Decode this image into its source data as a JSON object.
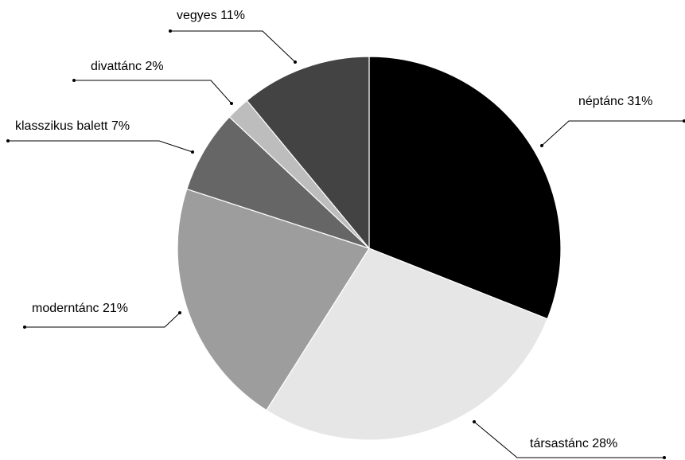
{
  "chart_data": {
    "type": "pie",
    "title": "",
    "slices": [
      {
        "label": "néptánc",
        "value": 31,
        "display": "néptánc 31%",
        "color": "#000000"
      },
      {
        "label": "társastánc",
        "value": 28,
        "display": "társastánc 28%",
        "color": "#e6e6e6"
      },
      {
        "label": "moderntánc",
        "value": 21,
        "display": "moderntánc 21%",
        "color": "#9d9d9d"
      },
      {
        "label": "klasszikus balett",
        "value": 7,
        "display": "klasszikus balett 7%",
        "color": "#666666"
      },
      {
        "label": "divattánc",
        "value": 2,
        "display": "divattánc 2%",
        "color": "#bdbdbd"
      },
      {
        "label": "vegyes",
        "value": 11,
        "display": "vegyes 11%",
        "color": "#434343"
      }
    ],
    "start_angle_deg": 0,
    "direction": "clockwise",
    "legend": "none",
    "data_labels": "outside with leader lines"
  }
}
